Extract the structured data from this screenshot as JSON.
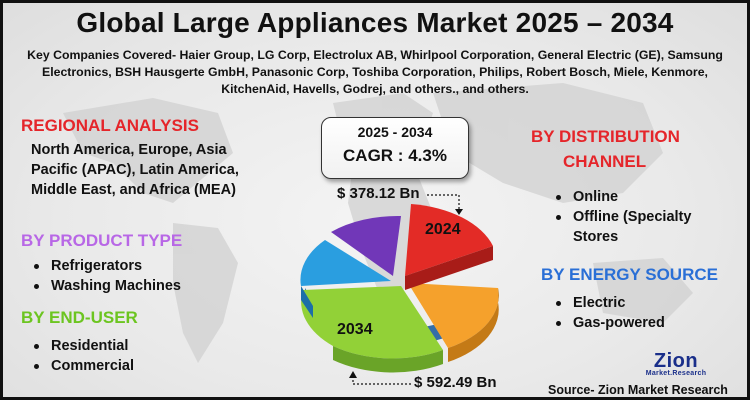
{
  "title": "Global Large Appliances Market  2025 – 2034",
  "subtitle": "Key Companies Covered- Haier Group, LG Corp, Electrolux AB, Whirlpool Corporation, General Electric (GE), Samsung Electronics, BSH Hausgerte GmbH, Panasonic Corp, Toshiba Corporation, Philips, Robert Bosch, Miele, Kenmore, KitchenAid, Havells, Godrej, and others., and others.",
  "regional": {
    "heading": "REGIONAL ANALYSIS",
    "text": "North America, Europe, Asia Pacific (APAC), Latin America, Middle East, and Africa (MEA)"
  },
  "product_type": {
    "heading": "BY PRODUCT TYPE",
    "items": [
      "Refrigerators",
      "Washing Machines"
    ]
  },
  "end_user": {
    "heading": "BY END-USER",
    "items": [
      "Residential",
      "Commercial"
    ]
  },
  "distribution": {
    "heading_line1": "BY DISTRIBUTION",
    "heading_line2": "CHANNEL",
    "items": [
      "Online",
      "Offline (Specialty",
      "Stores"
    ]
  },
  "energy": {
    "heading": "BY ENERGY SOURCE",
    "items": [
      "Electric",
      "Gas-powered"
    ]
  },
  "cagr": {
    "years": "2025 - 2034",
    "value": "CAGR : 4.3%"
  },
  "pie": {
    "label_2024": "2024",
    "label_2034": "2034",
    "value_2024": "$ 378.12 Bn",
    "value_2034": "$ 592.49 Bn",
    "colors": [
      "#e32b26",
      "#f5a12c",
      "#92d137",
      "#2a9ee0",
      "#7137b8"
    ]
  },
  "logo": {
    "main": "Zion",
    "sub": "Market.Research"
  },
  "source": "Source- Zion Market Research"
}
